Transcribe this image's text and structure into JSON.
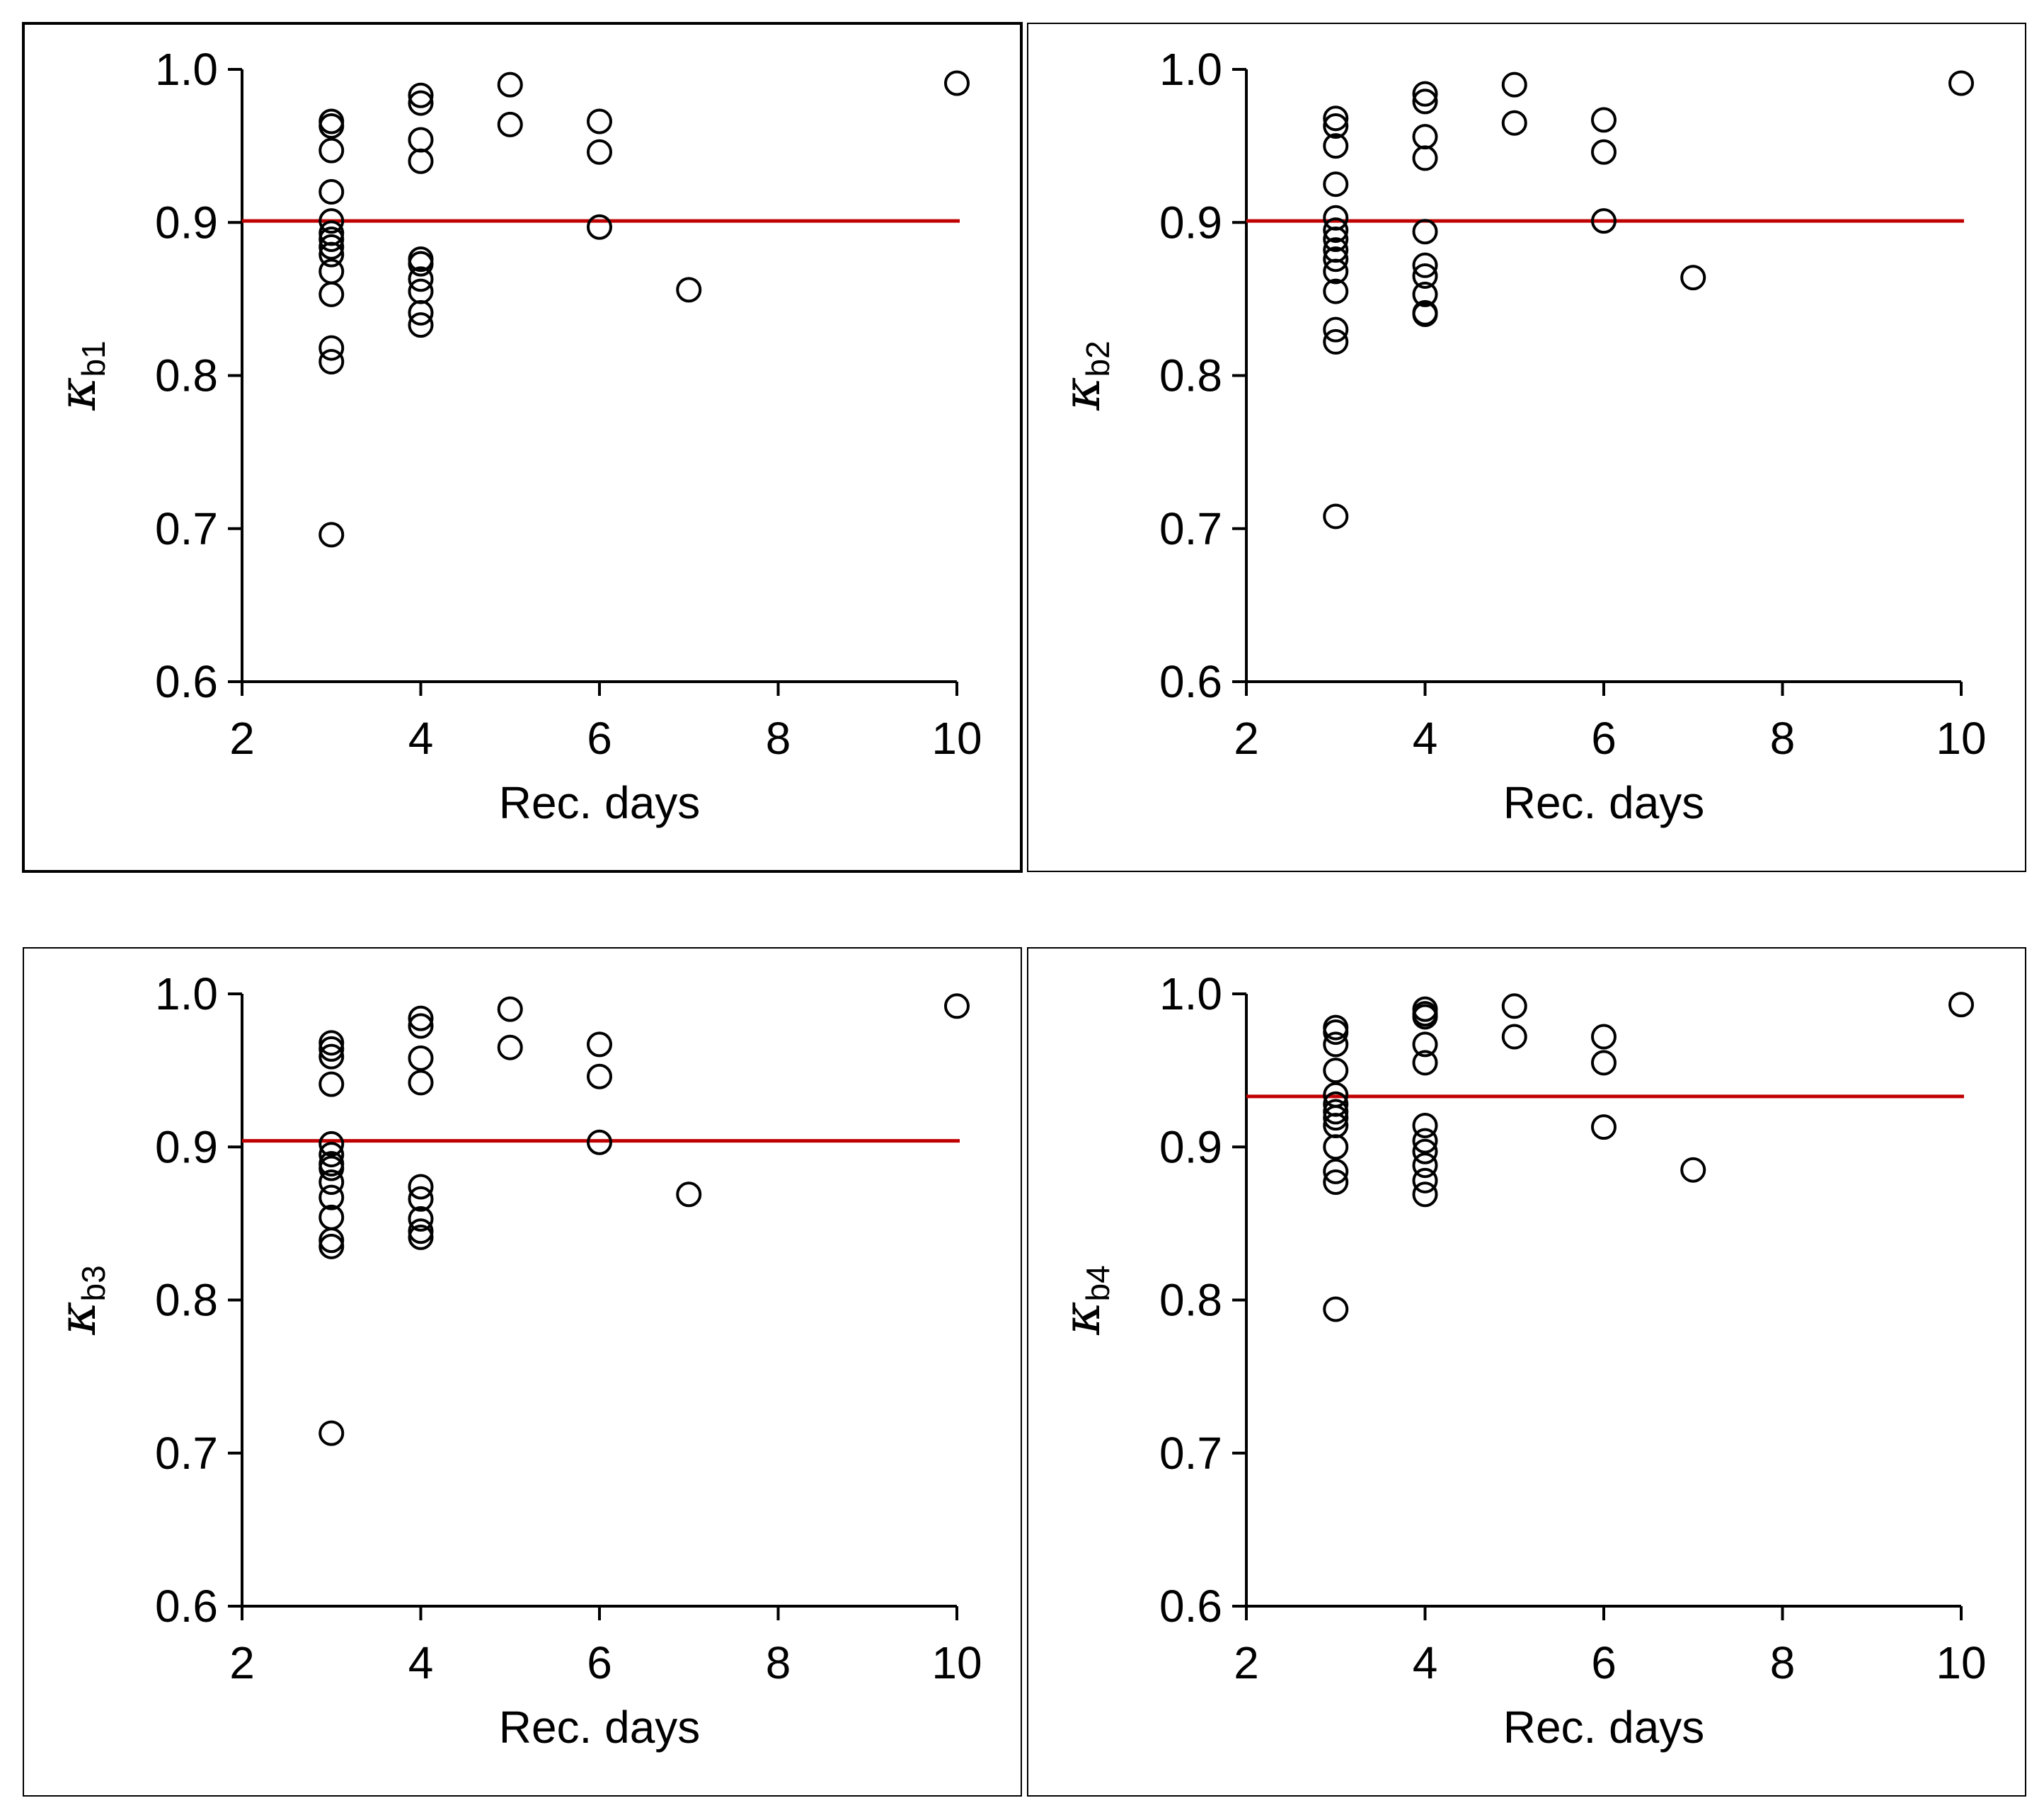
{
  "figure": {
    "x_axis_title": "Rec. days",
    "y_axis_symbol": "κ",
    "mean_line_color": "#c00000"
  },
  "chart_data": [
    {
      "type": "scatter",
      "id": "kb1",
      "ylabel_symbol": "κ",
      "ylabel_subscript": "b1",
      "xlabel": "Rec. days",
      "xlim": [
        2,
        10
      ],
      "ylim": [
        0.6,
        1.0
      ],
      "xticks": [
        2,
        4,
        6,
        8,
        10
      ],
      "xtick_labels": [
        "2",
        "4",
        "6",
        "8",
        "10"
      ],
      "yticks": [
        0.6,
        0.7,
        0.8,
        0.9,
        1.0
      ],
      "ytick_labels": [
        "0.6",
        "0.7",
        "0.8",
        "0.9",
        "1.0"
      ],
      "frame_emphasis": "bold",
      "mean_line": {
        "y": 0.901,
        "x_start": 2,
        "x_end": 10
      },
      "points": [
        [
          3,
          0.966
        ],
        [
          3,
          0.963
        ],
        [
          3,
          0.947
        ],
        [
          3,
          0.92
        ],
        [
          3,
          0.901
        ],
        [
          3,
          0.893
        ],
        [
          3,
          0.889
        ],
        [
          3,
          0.884
        ],
        [
          3,
          0.879
        ],
        [
          3,
          0.868
        ],
        [
          3,
          0.853
        ],
        [
          3,
          0.818
        ],
        [
          3,
          0.809
        ],
        [
          3,
          0.696
        ],
        [
          4,
          0.983
        ],
        [
          4,
          0.978
        ],
        [
          4,
          0.954
        ],
        [
          4,
          0.94
        ],
        [
          4,
          0.876
        ],
        [
          4,
          0.873
        ],
        [
          4,
          0.863
        ],
        [
          4,
          0.855
        ],
        [
          4,
          0.841
        ],
        [
          4,
          0.833
        ],
        [
          5,
          0.99
        ],
        [
          5,
          0.964
        ],
        [
          6,
          0.966
        ],
        [
          6,
          0.946
        ],
        [
          6,
          0.897
        ],
        [
          7,
          0.856
        ],
        [
          10,
          0.991
        ]
      ]
    },
    {
      "type": "scatter",
      "id": "kb2",
      "ylabel_symbol": "κ",
      "ylabel_subscript": "b2",
      "xlabel": "Rec. days",
      "xlim": [
        2,
        10
      ],
      "ylim": [
        0.6,
        1.0
      ],
      "xticks": [
        2,
        4,
        6,
        8,
        10
      ],
      "xtick_labels": [
        "2",
        "4",
        "6",
        "8",
        "10"
      ],
      "yticks": [
        0.6,
        0.7,
        0.8,
        0.9,
        1.0
      ],
      "ytick_labels": [
        "0.6",
        "0.7",
        "0.8",
        "0.9",
        "1.0"
      ],
      "frame_emphasis": "thin",
      "mean_line": {
        "y": 0.901,
        "x_start": 2,
        "x_end": 10
      },
      "points": [
        [
          3,
          0.968
        ],
        [
          3,
          0.963
        ],
        [
          3,
          0.95
        ],
        [
          3,
          0.925
        ],
        [
          3,
          0.903
        ],
        [
          3,
          0.895
        ],
        [
          3,
          0.889
        ],
        [
          3,
          0.882
        ],
        [
          3,
          0.876
        ],
        [
          3,
          0.868
        ],
        [
          3,
          0.855
        ],
        [
          3,
          0.83
        ],
        [
          3,
          0.822
        ],
        [
          3,
          0.708
        ],
        [
          4,
          0.984
        ],
        [
          4,
          0.979
        ],
        [
          4,
          0.956
        ],
        [
          4,
          0.942
        ],
        [
          4,
          0.894
        ],
        [
          4,
          0.872
        ],
        [
          4,
          0.865
        ],
        [
          4,
          0.853
        ],
        [
          4,
          0.841
        ],
        [
          4,
          0.84
        ],
        [
          5,
          0.99
        ],
        [
          5,
          0.965
        ],
        [
          6,
          0.967
        ],
        [
          6,
          0.946
        ],
        [
          6,
          0.901
        ],
        [
          7,
          0.864
        ],
        [
          10,
          0.991
        ]
      ]
    },
    {
      "type": "scatter",
      "id": "kb3",
      "ylabel_symbol": "κ",
      "ylabel_subscript": "b3",
      "xlabel": "Rec. days",
      "xlim": [
        2,
        10
      ],
      "ylim": [
        0.6,
        1.0
      ],
      "xticks": [
        2,
        4,
        6,
        8,
        10
      ],
      "xtick_labels": [
        "2",
        "4",
        "6",
        "8",
        "10"
      ],
      "yticks": [
        0.6,
        0.7,
        0.8,
        0.9,
        1.0
      ],
      "ytick_labels": [
        "0.6",
        "0.7",
        "0.8",
        "0.9",
        "1.0"
      ],
      "frame_emphasis": "thin",
      "mean_line": {
        "y": 0.904,
        "x_start": 2,
        "x_end": 10
      },
      "points": [
        [
          3,
          0.968
        ],
        [
          3,
          0.964
        ],
        [
          3,
          0.959
        ],
        [
          3,
          0.941
        ],
        [
          3,
          0.902
        ],
        [
          3,
          0.895
        ],
        [
          3,
          0.889
        ],
        [
          3,
          0.886
        ],
        [
          3,
          0.877
        ],
        [
          3,
          0.867
        ],
        [
          3,
          0.854
        ],
        [
          3,
          0.839
        ],
        [
          3,
          0.835
        ],
        [
          3,
          0.713
        ],
        [
          4,
          0.984
        ],
        [
          4,
          0.979
        ],
        [
          4,
          0.958
        ],
        [
          4,
          0.942
        ],
        [
          4,
          0.874
        ],
        [
          4,
          0.866
        ],
        [
          4,
          0.853
        ],
        [
          4,
          0.845
        ],
        [
          4,
          0.841
        ],
        [
          5,
          0.99
        ],
        [
          5,
          0.965
        ],
        [
          6,
          0.967
        ],
        [
          6,
          0.946
        ],
        [
          6,
          0.903
        ],
        [
          7,
          0.869
        ],
        [
          10,
          0.992
        ]
      ]
    },
    {
      "type": "scatter",
      "id": "kb4",
      "ylabel_symbol": "κ",
      "ylabel_subscript": "b4",
      "xlabel": "Rec. days",
      "xlim": [
        2,
        10
      ],
      "ylim": [
        0.6,
        1.0
      ],
      "xticks": [
        2,
        4,
        6,
        8,
        10
      ],
      "xtick_labels": [
        "2",
        "4",
        "6",
        "8",
        "10"
      ],
      "yticks": [
        0.6,
        0.7,
        0.8,
        0.9,
        1.0
      ],
      "ytick_labels": [
        "0.6",
        "0.7",
        "0.8",
        "0.9",
        "1.0"
      ],
      "frame_emphasis": "thin",
      "mean_line": {
        "y": 0.933,
        "x_start": 2,
        "x_end": 10
      },
      "points": [
        [
          3,
          0.978
        ],
        [
          3,
          0.975
        ],
        [
          3,
          0.967
        ],
        [
          3,
          0.95
        ],
        [
          3,
          0.934
        ],
        [
          3,
          0.928
        ],
        [
          3,
          0.923
        ],
        [
          3,
          0.919
        ],
        [
          3,
          0.914
        ],
        [
          3,
          0.9
        ],
        [
          3,
          0.884
        ],
        [
          3,
          0.877
        ],
        [
          3,
          0.794
        ],
        [
          4,
          0.99
        ],
        [
          4,
          0.987
        ],
        [
          4,
          0.985
        ],
        [
          4,
          0.967
        ],
        [
          4,
          0.955
        ],
        [
          4,
          0.914
        ],
        [
          4,
          0.904
        ],
        [
          4,
          0.897
        ],
        [
          4,
          0.888
        ],
        [
          4,
          0.878
        ],
        [
          4,
          0.869
        ],
        [
          5,
          0.992
        ],
        [
          5,
          0.972
        ],
        [
          6,
          0.972
        ],
        [
          6,
          0.955
        ],
        [
          6,
          0.913
        ],
        [
          7,
          0.885
        ],
        [
          10,
          0.993
        ]
      ]
    }
  ]
}
